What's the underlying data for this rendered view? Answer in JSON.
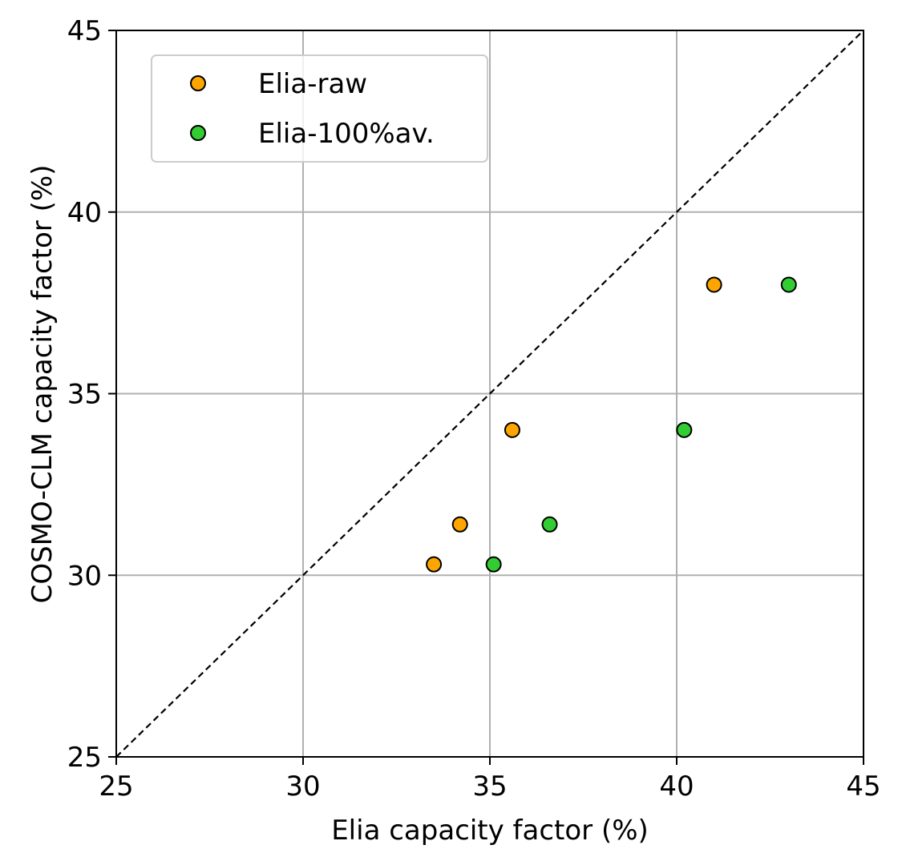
{
  "chart_data": {
    "type": "scatter",
    "title": "",
    "xlabel": "Elia capacity factor (%)",
    "ylabel": "COSMO-CLM capacity factor (%)",
    "xlim": [
      25,
      45
    ],
    "ylim": [
      25,
      45
    ],
    "xticks": [
      25,
      30,
      35,
      40,
      45
    ],
    "yticks": [
      25,
      30,
      35,
      40,
      45
    ],
    "grid": true,
    "legend_position": "top-left",
    "reference_line": {
      "style": "dashed",
      "color": "#000000",
      "from": [
        25,
        25
      ],
      "to": [
        45,
        45
      ]
    },
    "series": [
      {
        "name": "Elia-raw",
        "color": "#FFA500",
        "points": [
          {
            "x": 33.5,
            "y": 30.3
          },
          {
            "x": 34.2,
            "y": 31.4
          },
          {
            "x": 35.6,
            "y": 34.0
          },
          {
            "x": 41.0,
            "y": 38.0
          }
        ]
      },
      {
        "name": "Elia-100%av.",
        "color": "#32CD32",
        "points": [
          {
            "x": 35.1,
            "y": 30.3
          },
          {
            "x": 36.6,
            "y": 31.4
          },
          {
            "x": 40.2,
            "y": 34.0
          },
          {
            "x": 43.0,
            "y": 38.0
          }
        ]
      }
    ]
  }
}
